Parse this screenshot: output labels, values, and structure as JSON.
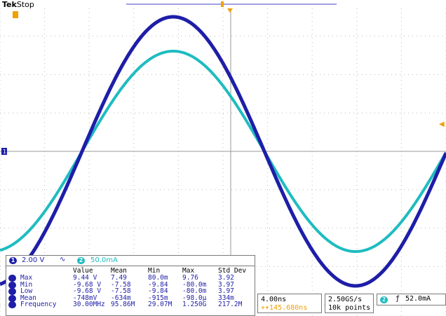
{
  "brand": {
    "name": "Tek",
    "state": "Stop"
  },
  "channels": {
    "ch1": {
      "label": "1",
      "scale": "2.00 V",
      "coupling_symbol": "∿",
      "color": "#1e1ea8"
    },
    "ch2": {
      "label": "2",
      "scale": "50.0mA",
      "color": "#1ebcc0"
    }
  },
  "measurements": {
    "headers": [
      "Value",
      "Mean",
      "Min",
      "Max",
      "Std Dev"
    ],
    "rows": [
      {
        "name": "Max",
        "values": [
          "9.44 V",
          "7.49",
          "80.0m",
          "9.76",
          "3.92"
        ]
      },
      {
        "name": "Min",
        "values": [
          "-9.68 V",
          "-7.58",
          "-9.84",
          "-80.0m",
          "3.97"
        ]
      },
      {
        "name": "Low",
        "values": [
          "-9.68 V",
          "-7.58",
          "-9.84",
          "-80.0m",
          "3.97"
        ]
      },
      {
        "name": "Mean",
        "values": [
          "-748mV",
          "-634m",
          "-915m",
          "-98.0µ",
          "334m"
        ]
      },
      {
        "name": "Frequency",
        "values": [
          "30.00MHz",
          "95.86M",
          "29.07M",
          "1.250G",
          "217.2M"
        ]
      }
    ]
  },
  "timebase": {
    "scale": "4.00ns",
    "trigger_position": "+▾145.680ns"
  },
  "acquisition": {
    "rate": "2.50GS/s",
    "record": "10k points"
  },
  "trigger": {
    "source": "2",
    "slope_symbol": "ƒ",
    "level": "52.0mA"
  },
  "markers": {
    "ch1_ground": "1",
    "trigger_level": "◀"
  },
  "colors": {
    "ch1": "#1e1ea8",
    "ch2": "#1ebcc0",
    "trigger": "#f0a000",
    "grid": "#b8b8b8"
  }
}
